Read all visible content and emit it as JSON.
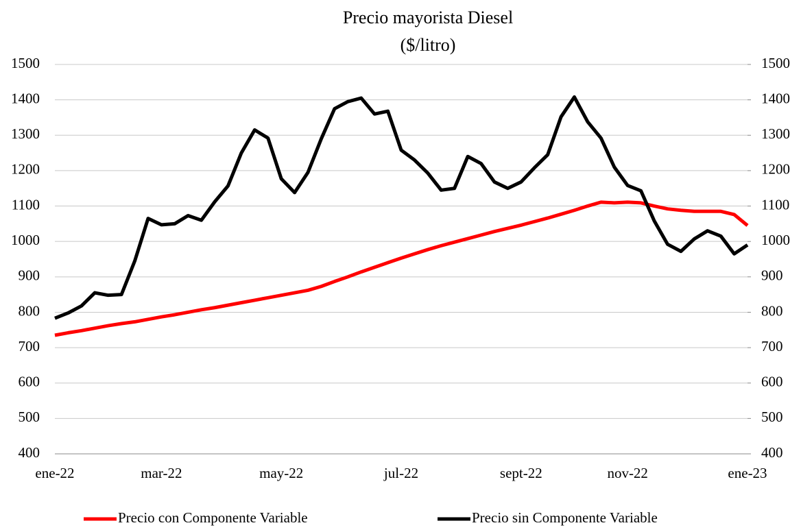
{
  "chart_data": {
    "type": "line",
    "title": "Precio mayorista Diesel",
    "subtitle": "($/litro)",
    "categories": [
      "ene-22",
      null,
      null,
      null,
      null,
      null,
      null,
      null,
      "mar-22",
      null,
      null,
      null,
      null,
      null,
      null,
      null,
      null,
      "may-22",
      null,
      null,
      null,
      null,
      null,
      null,
      null,
      null,
      "jul-22",
      null,
      null,
      null,
      null,
      null,
      null,
      null,
      null,
      "sept-22",
      null,
      null,
      null,
      null,
      null,
      null,
      null,
      "nov-22",
      null,
      null,
      null,
      null,
      null,
      null,
      null,
      null,
      "ene-23"
    ],
    "series": [
      {
        "name": "Precio con Componente Variable",
        "color": "#ff0000",
        "values": [
          735,
          742,
          748,
          755,
          762,
          768,
          773,
          780,
          787,
          793,
          800,
          807,
          813,
          820,
          827,
          834,
          841,
          848,
          855,
          862,
          873,
          887,
          900,
          914,
          927,
          940,
          953,
          965,
          977,
          988,
          998,
          1008,
          1018,
          1028,
          1037,
          1046,
          1056,
          1066,
          1077,
          1088,
          1100,
          1111,
          1109,
          1111,
          1109,
          1100,
          1092,
          1088,
          1085,
          1085,
          1085,
          1076,
          1045
        ]
      },
      {
        "name": "Precio sin Componente Variable",
        "color": "#000000",
        "values": [
          783,
          798,
          818,
          855,
          848,
          850,
          945,
          1065,
          1047,
          1050,
          1073,
          1060,
          1112,
          1157,
          1250,
          1315,
          1292,
          1177,
          1138,
          1195,
          1290,
          1375,
          1395,
          1405,
          1360,
          1368,
          1258,
          1230,
          1193,
          1145,
          1150,
          1240,
          1220,
          1168,
          1150,
          1168,
          1208,
          1245,
          1352,
          1408,
          1338,
          1292,
          1210,
          1158,
          1143,
          1058,
          992,
          972,
          1007,
          1030,
          1015,
          965,
          990
        ]
      }
    ],
    "ylim": [
      400,
      1500
    ],
    "yticks": [
      400,
      500,
      600,
      700,
      800,
      900,
      1000,
      1100,
      1200,
      1300,
      1400,
      1500
    ],
    "y2lim": [
      400,
      1500
    ],
    "y2ticks": [
      400,
      500,
      600,
      700,
      800,
      900,
      1000,
      1100,
      1200,
      1300,
      1400,
      1500
    ],
    "grid": true,
    "legend": "bottom"
  }
}
